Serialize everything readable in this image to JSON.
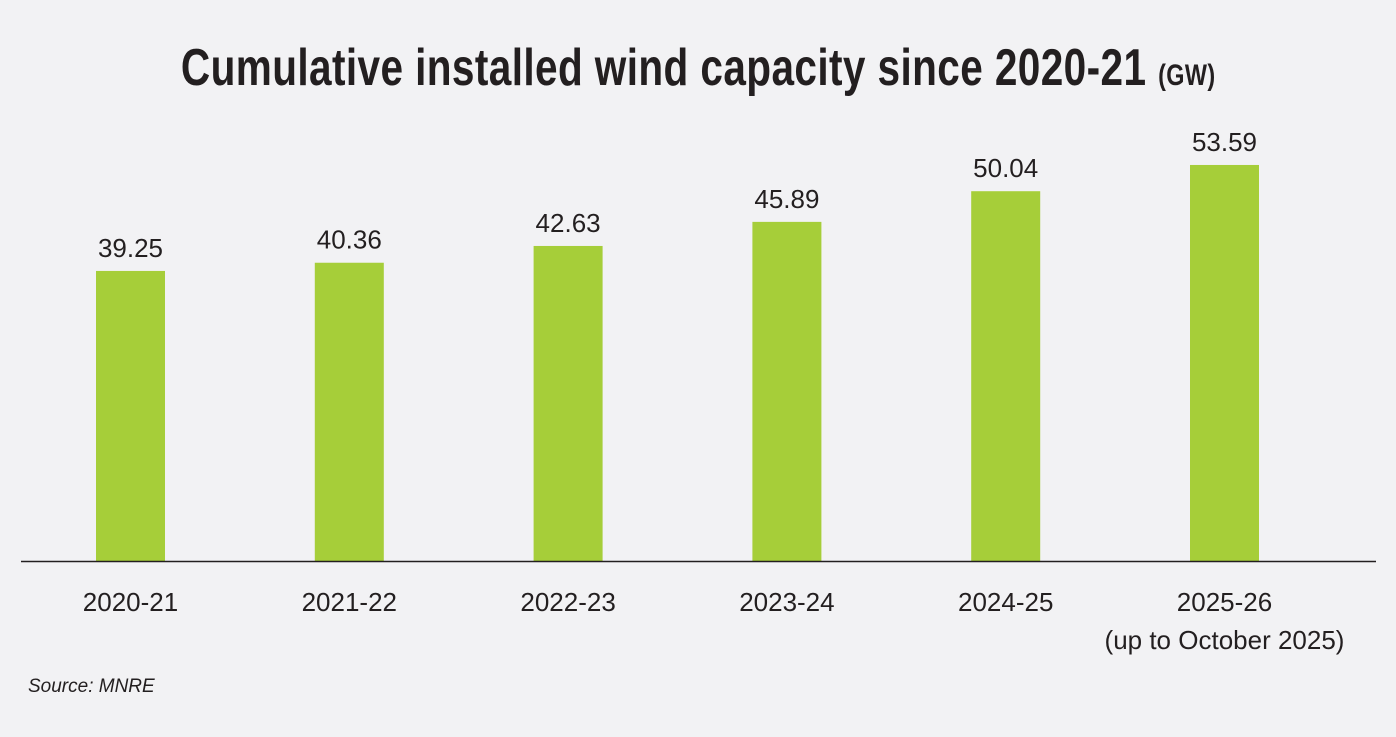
{
  "chart_data": {
    "type": "bar",
    "title": "Cumulative installed wind capacity since 2020-21",
    "title_unit": "(GW)",
    "categories": [
      "2020-21",
      "2021-22",
      "2022-23",
      "2023-24",
      "2024-25",
      "2025-26"
    ],
    "category_notes": [
      "",
      "",
      "",
      "",
      "",
      "(up to October 2025)"
    ],
    "values": [
      39.25,
      40.36,
      42.63,
      45.89,
      50.04,
      53.59
    ],
    "value_labels": [
      "39.25",
      "40.36",
      "42.63",
      "45.89",
      "50.04",
      "53.59"
    ],
    "xlabel": "",
    "ylabel": "GW",
    "ylim": [
      0,
      60
    ],
    "grid": false,
    "bar_color": "#a6ce39",
    "axis_color": "#231f20"
  },
  "source": "Source: MNRE"
}
